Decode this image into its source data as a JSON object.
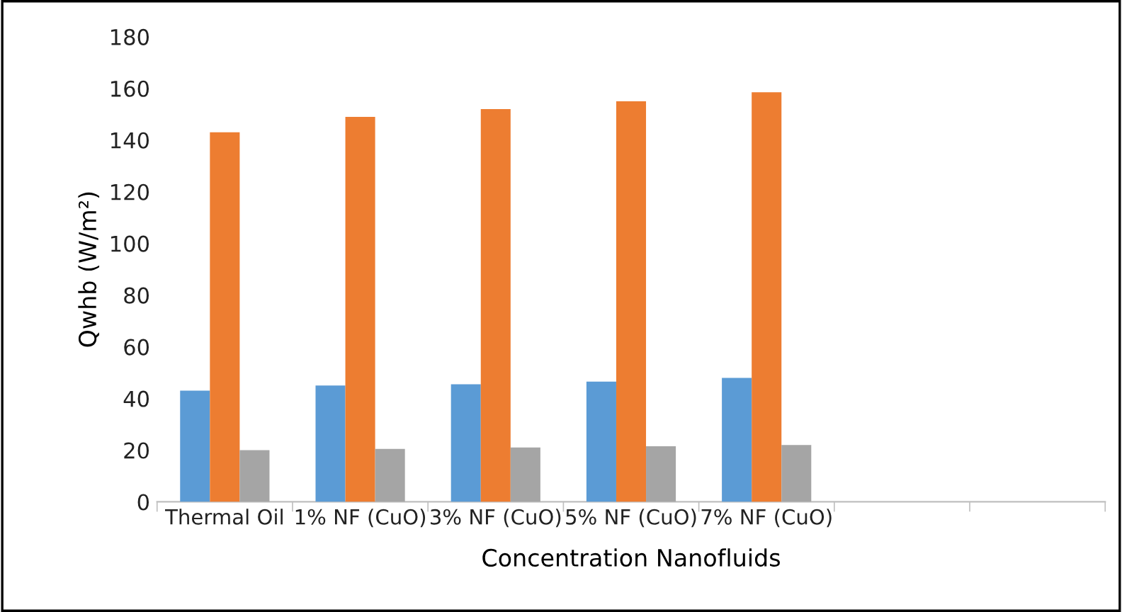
{
  "chart_data": {
    "type": "bar",
    "xlabel": "Concentration Nanofluids",
    "ylabel": "Qwhb (W/m²)",
    "categories": [
      "Thermal Oil",
      "1% NF (CuO)",
      "3% NF (CuO)",
      "5% NF (CuO)",
      "7% NF (CuO)",
      null,
      null
    ],
    "series": [
      {
        "color": "#5b9bd5",
        "values": [
          43,
          45,
          45.5,
          46.5,
          48,
          null,
          null
        ]
      },
      {
        "color": "#ed7d31",
        "values": [
          143,
          149,
          152,
          155,
          158.5,
          null,
          null
        ]
      },
      {
        "color": "#a5a5a5",
        "values": [
          20,
          20.5,
          21,
          21.5,
          22,
          null,
          null
        ]
      }
    ],
    "ylim": [
      0,
      180
    ],
    "yticks": [
      0,
      20,
      40,
      60,
      80,
      100,
      120,
      140,
      160,
      180
    ],
    "grid": false,
    "legend": false
  }
}
